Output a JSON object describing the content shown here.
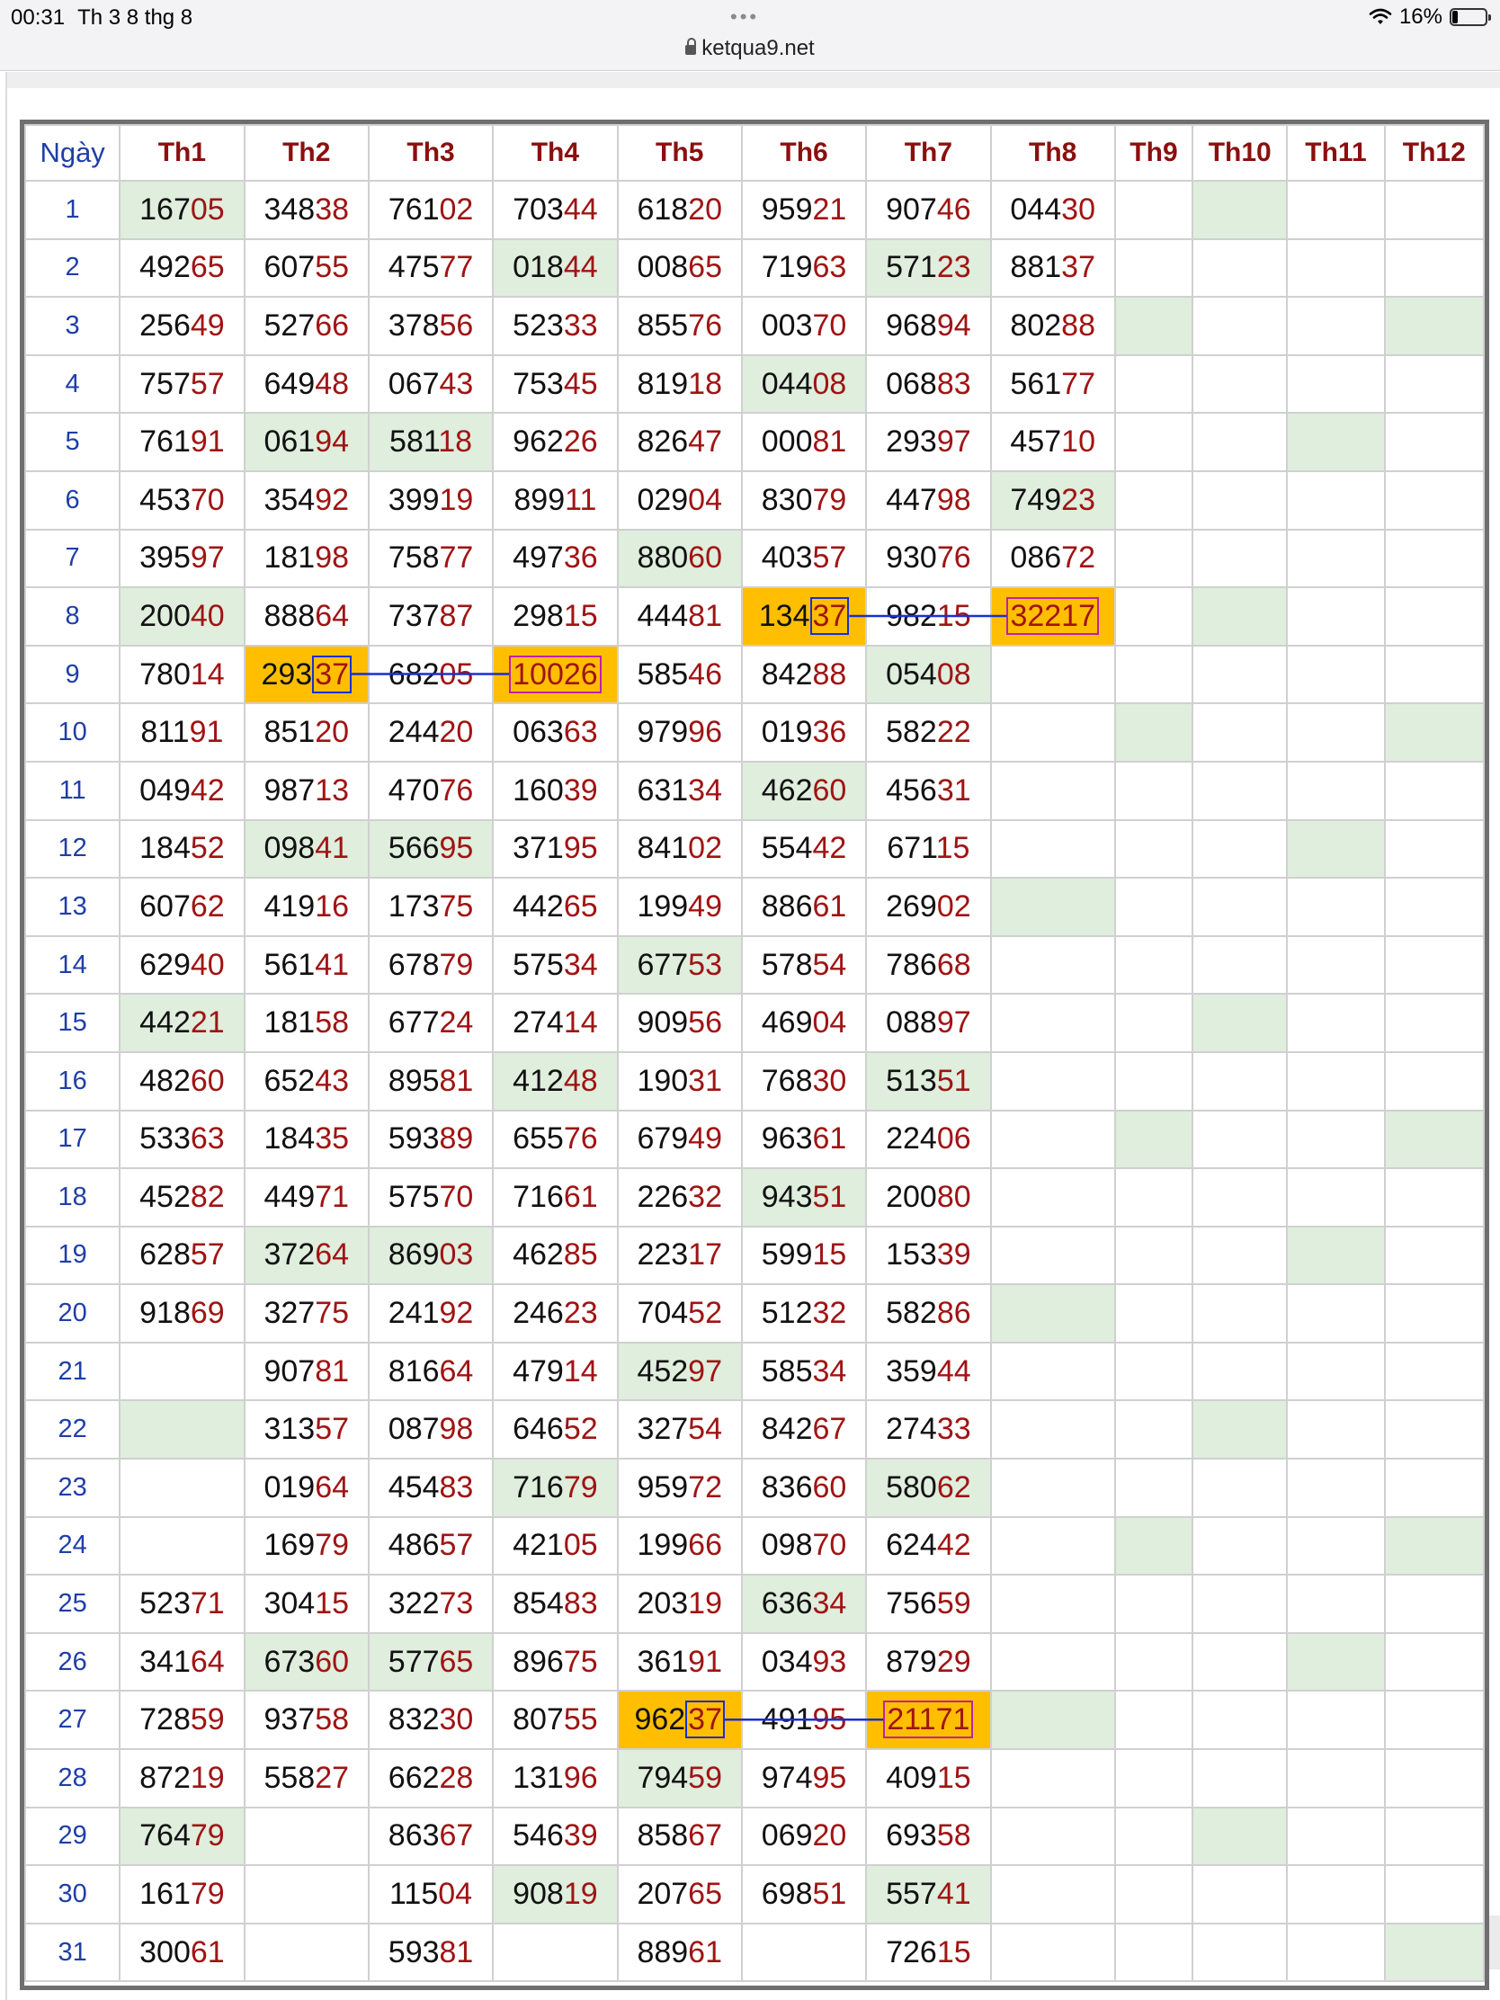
{
  "status": {
    "time": "00:31",
    "date": "Th 3 8 thg 8",
    "url": "ketqua9.net",
    "battery": "16%",
    "dots": "•••"
  },
  "table": {
    "day_header": "Ngày",
    "months": [
      "Th1",
      "Th2",
      "Th3",
      "Th4",
      "Th5",
      "Th6",
      "Th7",
      "Th8",
      "Th9",
      "Th10",
      "Th11",
      "Th12"
    ],
    "rows": [
      {
        "day": "1",
        "cells": [
          "16705",
          "34838",
          "76102",
          "70344",
          "61820",
          "95921",
          "90746",
          "04430",
          "",
          "",
          "",
          ""
        ],
        "g": [
          1,
          10
        ]
      },
      {
        "day": "2",
        "cells": [
          "49265",
          "60755",
          "47577",
          "01844",
          "00865",
          "71963",
          "57123",
          "88137",
          "",
          "",
          "",
          ""
        ],
        "g": [
          4,
          7
        ]
      },
      {
        "day": "3",
        "cells": [
          "25649",
          "52766",
          "37856",
          "52333",
          "85576",
          "00370",
          "96894",
          "80288",
          "",
          "",
          "",
          ""
        ],
        "g": [
          9,
          12
        ]
      },
      {
        "day": "4",
        "cells": [
          "75757",
          "64948",
          "06743",
          "75345",
          "81918",
          "04408",
          "06883",
          "56177",
          "",
          "",
          "",
          ""
        ],
        "g": [
          6
        ]
      },
      {
        "day": "5",
        "cells": [
          "76191",
          "06194",
          "58118",
          "96226",
          "82647",
          "00081",
          "29397",
          "45710",
          "",
          "",
          "",
          ""
        ],
        "g": [
          2,
          3,
          11
        ]
      },
      {
        "day": "6",
        "cells": [
          "45370",
          "35492",
          "39919",
          "89911",
          "02904",
          "83079",
          "44798",
          "74923",
          "",
          "",
          "",
          ""
        ],
        "g": [
          8
        ]
      },
      {
        "day": "7",
        "cells": [
          "39597",
          "18198",
          "75877",
          "49736",
          "88060",
          "40357",
          "93076",
          "08672",
          "",
          "",
          "",
          ""
        ],
        "g": [
          5
        ]
      },
      {
        "day": "8",
        "cells": [
          "20040",
          "88864",
          "73787",
          "29815",
          "44481",
          "13437",
          "98215",
          "32217",
          "",
          "",
          "",
          ""
        ],
        "g": [
          1,
          10
        ],
        "o": [
          6,
          8
        ]
      },
      {
        "day": "9",
        "cells": [
          "78014",
          "29337",
          "68205",
          "10026",
          "58546",
          "84288",
          "05408",
          "",
          "",
          "",
          "",
          ""
        ],
        "g": [
          7
        ],
        "o": [
          2,
          4
        ]
      },
      {
        "day": "10",
        "cells": [
          "81191",
          "85120",
          "24420",
          "06363",
          "97996",
          "01936",
          "58222",
          "",
          "",
          "",
          "",
          ""
        ],
        "g": [
          9,
          12
        ]
      },
      {
        "day": "11",
        "cells": [
          "04942",
          "98713",
          "47076",
          "16039",
          "63134",
          "46260",
          "45631",
          "",
          "",
          "",
          "",
          ""
        ],
        "g": [
          6
        ]
      },
      {
        "day": "12",
        "cells": [
          "18452",
          "09841",
          "56695",
          "37195",
          "84102",
          "55442",
          "67115",
          "",
          "",
          "",
          "",
          ""
        ],
        "g": [
          2,
          3,
          11
        ]
      },
      {
        "day": "13",
        "cells": [
          "60762",
          "41916",
          "17375",
          "44265",
          "19949",
          "88661",
          "26902",
          "",
          "",
          "",
          "",
          ""
        ],
        "g": [
          8
        ]
      },
      {
        "day": "14",
        "cells": [
          "62940",
          "56141",
          "67879",
          "57534",
          "67753",
          "57854",
          "78668",
          "",
          "",
          "",
          "",
          ""
        ],
        "g": [
          5
        ]
      },
      {
        "day": "15",
        "cells": [
          "44221",
          "18158",
          "67724",
          "27414",
          "90956",
          "46904",
          "08897",
          "",
          "",
          "",
          "",
          ""
        ],
        "g": [
          1,
          10
        ]
      },
      {
        "day": "16",
        "cells": [
          "48260",
          "65243",
          "89581",
          "41248",
          "19031",
          "76830",
          "51351",
          "",
          "",
          "",
          "",
          ""
        ],
        "g": [
          4,
          7
        ]
      },
      {
        "day": "17",
        "cells": [
          "53363",
          "18435",
          "59389",
          "65576",
          "67949",
          "96361",
          "22406",
          "",
          "",
          "",
          "",
          ""
        ],
        "g": [
          9,
          12
        ]
      },
      {
        "day": "18",
        "cells": [
          "45282",
          "44971",
          "57570",
          "71661",
          "22632",
          "94351",
          "20080",
          "",
          "",
          "",
          "",
          ""
        ],
        "g": [
          6
        ]
      },
      {
        "day": "19",
        "cells": [
          "62857",
          "37264",
          "86903",
          "46285",
          "22317",
          "59915",
          "15339",
          "",
          "",
          "",
          "",
          ""
        ],
        "g": [
          2,
          3,
          11
        ]
      },
      {
        "day": "20",
        "cells": [
          "91869",
          "32775",
          "24192",
          "24623",
          "70452",
          "51232",
          "58286",
          "",
          "",
          "",
          "",
          ""
        ],
        "g": [
          8
        ]
      },
      {
        "day": "21",
        "cells": [
          "",
          "90781",
          "81664",
          "47914",
          "45297",
          "58534",
          "35944",
          "",
          "",
          "",
          "",
          ""
        ],
        "g": [
          5
        ]
      },
      {
        "day": "22",
        "cells": [
          "",
          "31357",
          "08798",
          "64652",
          "32754",
          "84267",
          "27433",
          "",
          "",
          "",
          "",
          ""
        ],
        "g": [
          1,
          10
        ]
      },
      {
        "day": "23",
        "cells": [
          "",
          "01964",
          "45483",
          "71679",
          "95972",
          "83660",
          "58062",
          "",
          "",
          "",
          "",
          ""
        ],
        "g": [
          4,
          7
        ]
      },
      {
        "day": "24",
        "cells": [
          "",
          "16979",
          "48657",
          "42105",
          "19966",
          "09870",
          "62442",
          "",
          "",
          "",
          "",
          ""
        ],
        "g": [
          9,
          12
        ]
      },
      {
        "day": "25",
        "cells": [
          "52371",
          "30415",
          "32273",
          "85483",
          "20319",
          "63634",
          "75659",
          "",
          "",
          "",
          "",
          ""
        ],
        "g": [
          6
        ]
      },
      {
        "day": "26",
        "cells": [
          "34164",
          "67360",
          "57765",
          "89675",
          "36191",
          "03493",
          "87929",
          "",
          "",
          "",
          "",
          ""
        ],
        "g": [
          2,
          3,
          11
        ]
      },
      {
        "day": "27",
        "cells": [
          "72859",
          "93758",
          "83230",
          "80755",
          "96237",
          "49195",
          "21171",
          "",
          "",
          "",
          "",
          ""
        ],
        "g": [
          8
        ],
        "o": [
          5,
          7
        ]
      },
      {
        "day": "28",
        "cells": [
          "87219",
          "55827",
          "66228",
          "13196",
          "79459",
          "97495",
          "40915",
          "",
          "",
          "",
          "",
          ""
        ],
        "g": [
          5
        ]
      },
      {
        "day": "29",
        "cells": [
          "76479",
          "",
          "86367",
          "54639",
          "85867",
          "06920",
          "69358",
          "",
          "",
          "",
          "",
          ""
        ],
        "g": [
          1,
          10
        ]
      },
      {
        "day": "30",
        "cells": [
          "16179",
          "",
          "11504",
          "90819",
          "20765",
          "69851",
          "55741",
          "",
          "",
          "",
          "",
          ""
        ],
        "g": [
          4,
          7
        ]
      },
      {
        "day": "31",
        "cells": [
          "30061",
          "",
          "59381",
          "",
          "88961",
          "",
          "72615",
          "",
          "",
          "",
          "",
          ""
        ],
        "g": [
          12
        ]
      }
    ]
  },
  "highlights": [
    {
      "row": 8,
      "from_col": 6,
      "to_col": 8,
      "digits": "37",
      "marked": "32217"
    },
    {
      "row": 9,
      "from_col": 2,
      "to_col": 4,
      "digits": "37",
      "marked": "10026"
    },
    {
      "row": 27,
      "from_col": 5,
      "to_col": 7,
      "digits": "37",
      "marked": "21171"
    }
  ],
  "colors": {
    "green_cell": "#dfeedd",
    "orange_cell": "#ffbf00",
    "day_blue": "#1f3ea8",
    "month_red": "#8b0f0f",
    "digit_red": "#a01414",
    "box_blue": "#1b2fd0",
    "box_purple": "#c21fa8"
  }
}
